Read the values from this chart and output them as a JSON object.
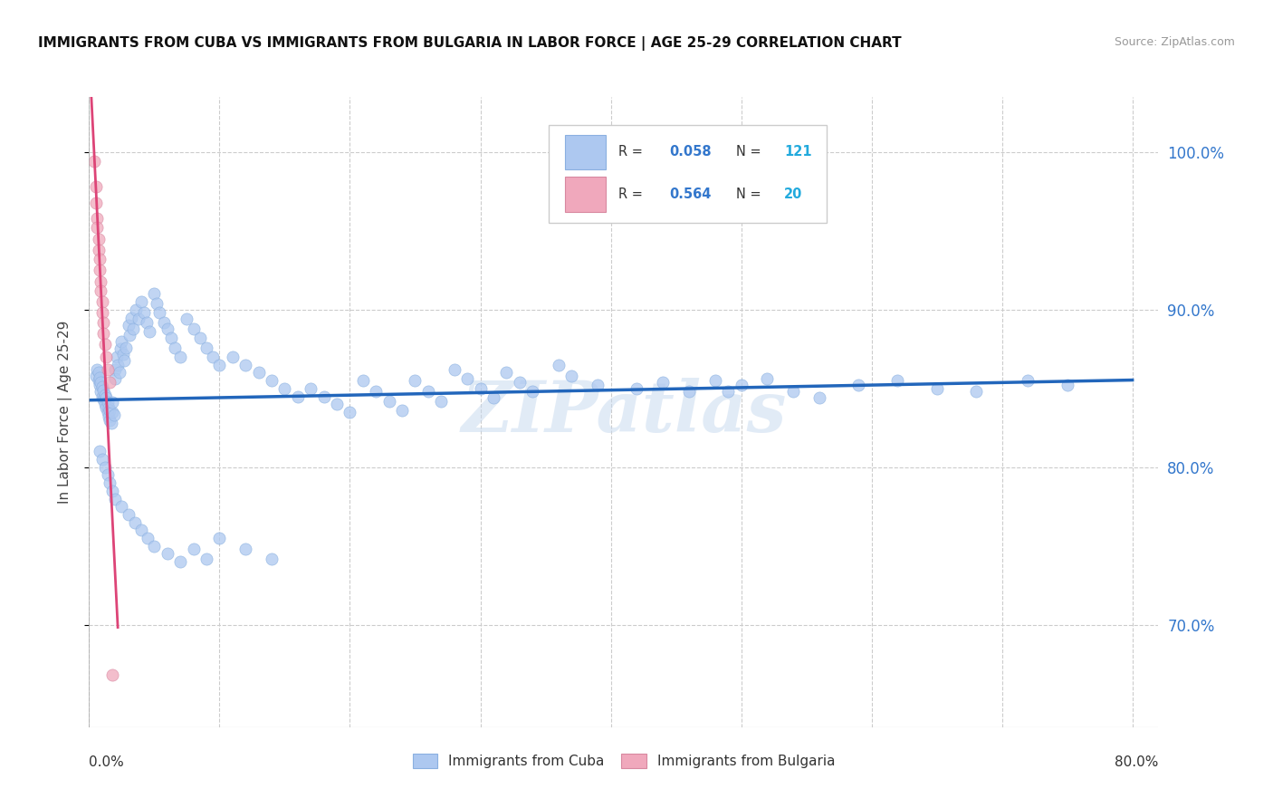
{
  "title": "IMMIGRANTS FROM CUBA VS IMMIGRANTS FROM BULGARIA IN LABOR FORCE | AGE 25-29 CORRELATION CHART",
  "source": "Source: ZipAtlas.com",
  "ylabel": "In Labor Force | Age 25-29",
  "xlim": [
    0.0,
    0.82
  ],
  "ylim": [
    0.635,
    1.035
  ],
  "color_cuba": "#adc8f0",
  "color_bulgaria": "#f0a8bc",
  "trendline_cuba_color": "#2266bb",
  "trendline_bulgaria_color": "#dd4477",
  "watermark": "ZIPatlas",
  "legend_r_color": "#3377cc",
  "legend_n_color": "#22aadd",
  "yaxis_ticks": [
    0.7,
    0.8,
    0.9,
    1.0
  ],
  "yaxis_labels": [
    "70.0%",
    "80.0%",
    "90.0%",
    "100.0%"
  ],
  "cuba_x": [
    0.005,
    0.006,
    0.007,
    0.007,
    0.008,
    0.008,
    0.009,
    0.009,
    0.01,
    0.01,
    0.011,
    0.011,
    0.012,
    0.012,
    0.013,
    0.013,
    0.014,
    0.014,
    0.015,
    0.015,
    0.016,
    0.016,
    0.017,
    0.018,
    0.018,
    0.019,
    0.02,
    0.02,
    0.021,
    0.022,
    0.023,
    0.024,
    0.025,
    0.026,
    0.027,
    0.028,
    0.03,
    0.031,
    0.032,
    0.034,
    0.036,
    0.038,
    0.04,
    0.042,
    0.044,
    0.046,
    0.05,
    0.052,
    0.054,
    0.057,
    0.06,
    0.063,
    0.066,
    0.07,
    0.075,
    0.08,
    0.085,
    0.09,
    0.095,
    0.1,
    0.11,
    0.12,
    0.13,
    0.14,
    0.15,
    0.16,
    0.17,
    0.18,
    0.19,
    0.2,
    0.21,
    0.22,
    0.23,
    0.24,
    0.25,
    0.26,
    0.27,
    0.28,
    0.29,
    0.3,
    0.31,
    0.32,
    0.33,
    0.34,
    0.36,
    0.37,
    0.39,
    0.42,
    0.44,
    0.46,
    0.48,
    0.49,
    0.5,
    0.52,
    0.54,
    0.56,
    0.59,
    0.62,
    0.65,
    0.68,
    0.72,
    0.75,
    0.008,
    0.01,
    0.012,
    0.014,
    0.016,
    0.018,
    0.02,
    0.025,
    0.03,
    0.035,
    0.04,
    0.045,
    0.05,
    0.06,
    0.07,
    0.08,
    0.09,
    0.1,
    0.12,
    0.14
  ],
  "cuba_y": [
    0.858,
    0.862,
    0.855,
    0.86,
    0.852,
    0.857,
    0.848,
    0.854,
    0.845,
    0.851,
    0.843,
    0.849,
    0.84,
    0.846,
    0.838,
    0.844,
    0.835,
    0.841,
    0.832,
    0.838,
    0.83,
    0.836,
    0.828,
    0.835,
    0.841,
    0.833,
    0.862,
    0.856,
    0.87,
    0.865,
    0.86,
    0.875,
    0.88,
    0.872,
    0.868,
    0.876,
    0.89,
    0.884,
    0.895,
    0.888,
    0.9,
    0.894,
    0.905,
    0.898,
    0.892,
    0.886,
    0.91,
    0.904,
    0.898,
    0.892,
    0.888,
    0.882,
    0.876,
    0.87,
    0.894,
    0.888,
    0.882,
    0.876,
    0.87,
    0.865,
    0.87,
    0.865,
    0.86,
    0.855,
    0.85,
    0.845,
    0.85,
    0.845,
    0.84,
    0.835,
    0.855,
    0.848,
    0.842,
    0.836,
    0.855,
    0.848,
    0.842,
    0.862,
    0.856,
    0.85,
    0.844,
    0.86,
    0.854,
    0.848,
    0.865,
    0.858,
    0.852,
    0.85,
    0.854,
    0.848,
    0.855,
    0.848,
    0.852,
    0.856,
    0.848,
    0.844,
    0.852,
    0.855,
    0.85,
    0.848,
    0.855,
    0.852,
    0.81,
    0.805,
    0.8,
    0.795,
    0.79,
    0.785,
    0.78,
    0.775,
    0.77,
    0.765,
    0.76,
    0.755,
    0.75,
    0.745,
    0.74,
    0.748,
    0.742,
    0.755,
    0.748,
    0.742
  ],
  "bulgaria_x": [
    0.004,
    0.005,
    0.005,
    0.006,
    0.006,
    0.007,
    0.007,
    0.008,
    0.008,
    0.009,
    0.009,
    0.01,
    0.01,
    0.011,
    0.011,
    0.012,
    0.013,
    0.014,
    0.016,
    0.018
  ],
  "bulgaria_y": [
    0.994,
    0.978,
    0.968,
    0.958,
    0.952,
    0.945,
    0.938,
    0.932,
    0.925,
    0.918,
    0.912,
    0.905,
    0.898,
    0.892,
    0.885,
    0.878,
    0.87,
    0.862,
    0.854,
    0.668
  ]
}
